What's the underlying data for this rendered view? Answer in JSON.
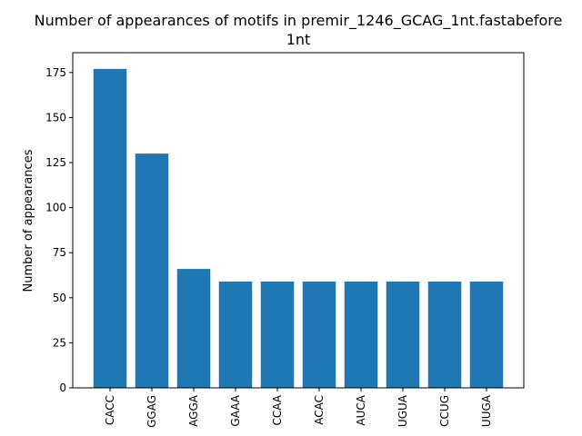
{
  "chart_data": {
    "type": "bar",
    "title_line1": "Number of appearances of motifs in premir_1246_GCAG_1nt.fastabefore",
    "title_line2": "1nt",
    "xlabel": "",
    "ylabel": "Number of appearances",
    "categories": [
      "CACC",
      "GGAG",
      "AGGA",
      "GAAA",
      "CCAA",
      "ACAC",
      "AUCA",
      "UGUA",
      "CCUG",
      "UUGA"
    ],
    "values": [
      177,
      130,
      66,
      59,
      59,
      59,
      59,
      59,
      59,
      59
    ],
    "ylim": [
      0,
      186
    ],
    "yticks": [
      0,
      25,
      50,
      75,
      100,
      125,
      150,
      175
    ],
    "bar_color": "#1f77b4",
    "grid": false,
    "legend": "none"
  }
}
